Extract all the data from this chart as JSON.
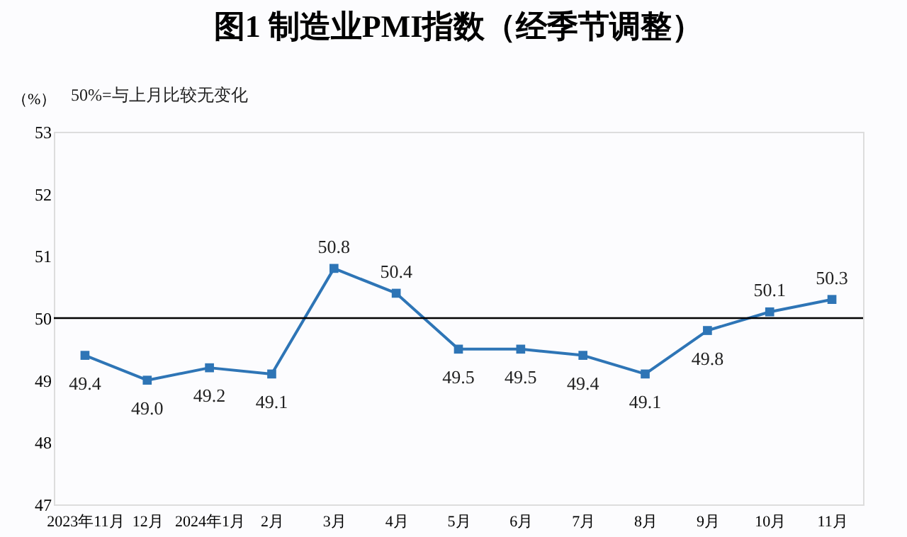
{
  "chart_data": {
    "type": "line",
    "title": "图1  制造业PMI指数（经季节调整）",
    "ylabel": "（%）",
    "annotations": [
      "50%=与上月比较无变化"
    ],
    "categories": [
      "2023年11月",
      "12月",
      "2024年1月",
      "2月",
      "3月",
      "4月",
      "5月",
      "6月",
      "7月",
      "8月",
      "9月",
      "10月",
      "11月"
    ],
    "series": [
      {
        "color": "#2e75b6",
        "values": [
          49.4,
          49.0,
          49.2,
          49.1,
          50.8,
          50.4,
          49.5,
          49.5,
          49.4,
          49.1,
          49.8,
          50.1,
          50.3
        ],
        "value_labels": [
          "49.4",
          "49.0",
          "49.2",
          "49.1",
          "50.8",
          "50.4",
          "49.5",
          "49.5",
          "49.4",
          "49.1",
          "49.8",
          "50.1",
          "50.3"
        ]
      }
    ],
    "ylim": [
      47,
      53
    ],
    "yticks": [
      47,
      48,
      49,
      50,
      51,
      52,
      53
    ],
    "grid": false,
    "marker": "square",
    "line_style": "solid",
    "ref_lines": [
      {
        "axis": "y",
        "value": 50,
        "color": "#000000"
      }
    ]
  }
}
